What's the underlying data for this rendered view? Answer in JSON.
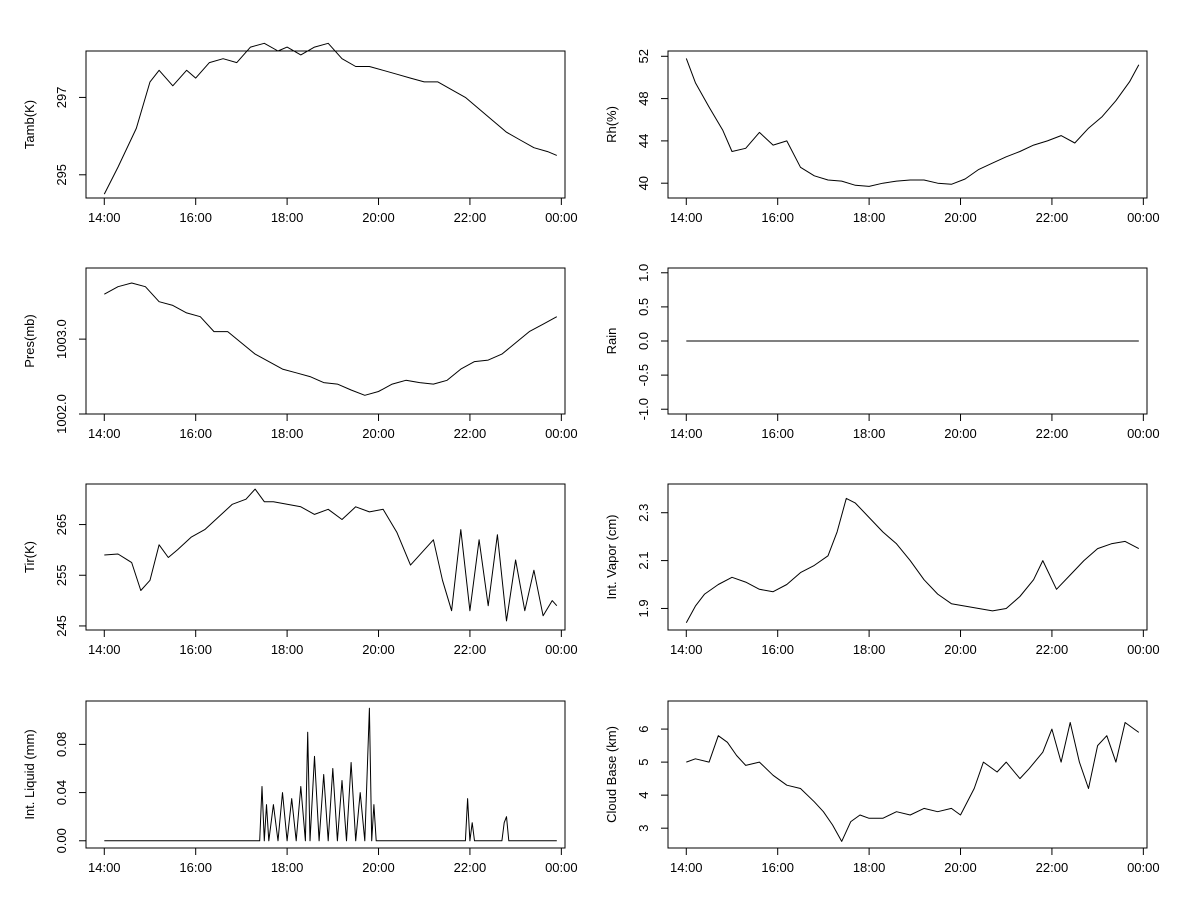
{
  "chart_data": [
    {
      "type": "line",
      "ylabel": "Tamb(K)",
      "xticks": [
        "14:00",
        "16:00",
        "18:00",
        "20:00",
        "22:00",
        "00:00"
      ],
      "xlim": [
        14.0,
        24.0
      ],
      "yticks": [
        295,
        297
      ],
      "ylim": [
        294.4,
        298.2
      ],
      "series": [
        {
          "x": [
            14.0,
            14.3,
            14.7,
            15.0,
            15.2,
            15.5,
            15.8,
            16.0,
            16.3,
            16.6,
            16.9,
            17.2,
            17.5,
            17.8,
            18.0,
            18.3,
            18.6,
            18.9,
            19.2,
            19.5,
            19.8,
            20.1,
            20.4,
            20.7,
            21.0,
            21.3,
            21.6,
            21.9,
            22.2,
            22.5,
            22.8,
            23.1,
            23.4,
            23.7,
            23.9
          ],
          "y": [
            294.5,
            295.2,
            296.2,
            297.4,
            297.7,
            297.3,
            297.7,
            297.5,
            297.9,
            298.0,
            297.9,
            298.3,
            298.4,
            298.2,
            298.3,
            298.1,
            298.3,
            298.4,
            298.0,
            297.8,
            297.8,
            297.7,
            297.6,
            297.5,
            297.4,
            297.4,
            297.2,
            297.0,
            296.7,
            296.4,
            296.1,
            295.9,
            295.7,
            295.6,
            295.5
          ]
        }
      ]
    },
    {
      "type": "line",
      "ylabel": "Rh(%)",
      "xticks": [
        "14:00",
        "16:00",
        "18:00",
        "20:00",
        "22:00",
        "00:00"
      ],
      "xlim": [
        14.0,
        24.0
      ],
      "yticks": [
        40,
        44,
        48,
        52
      ],
      "ylim": [
        38.6,
        52.5
      ],
      "series": [
        {
          "x": [
            14.0,
            14.2,
            14.5,
            14.8,
            15.0,
            15.3,
            15.6,
            15.9,
            16.2,
            16.5,
            16.8,
            17.1,
            17.4,
            17.7,
            18.0,
            18.3,
            18.6,
            18.9,
            19.2,
            19.5,
            19.8,
            20.1,
            20.4,
            20.7,
            21.0,
            21.3,
            21.6,
            21.9,
            22.2,
            22.5,
            22.8,
            23.1,
            23.4,
            23.7,
            23.9
          ],
          "y": [
            51.8,
            49.5,
            47.2,
            45.0,
            43.0,
            43.3,
            44.8,
            43.6,
            44.0,
            41.5,
            40.7,
            40.3,
            40.2,
            39.8,
            39.7,
            40.0,
            40.2,
            40.3,
            40.3,
            40.0,
            39.9,
            40.4,
            41.3,
            41.9,
            42.5,
            43.0,
            43.6,
            44.0,
            44.5,
            43.8,
            45.2,
            46.3,
            47.8,
            49.6,
            51.2
          ]
        }
      ]
    },
    {
      "type": "line",
      "ylabel": "Pres(mb)",
      "xticks": [
        "14:00",
        "16:00",
        "18:00",
        "20:00",
        "22:00",
        "00:00"
      ],
      "xlim": [
        14.0,
        24.0
      ],
      "yticks": [
        "1002.0",
        "1003.0"
      ],
      "ylim": [
        1002.0,
        1003.95
      ],
      "series": [
        {
          "x": [
            14.0,
            14.3,
            14.6,
            14.9,
            15.2,
            15.5,
            15.8,
            16.1,
            16.4,
            16.7,
            17.0,
            17.3,
            17.6,
            17.9,
            18.2,
            18.5,
            18.8,
            19.1,
            19.4,
            19.7,
            20.0,
            20.3,
            20.6,
            20.9,
            21.2,
            21.5,
            21.8,
            22.1,
            22.4,
            22.7,
            23.0,
            23.3,
            23.6,
            23.9
          ],
          "y": [
            1003.6,
            1003.7,
            1003.75,
            1003.7,
            1003.5,
            1003.45,
            1003.35,
            1003.3,
            1003.1,
            1003.1,
            1002.95,
            1002.8,
            1002.7,
            1002.6,
            1002.55,
            1002.5,
            1002.42,
            1002.4,
            1002.32,
            1002.25,
            1002.3,
            1002.4,
            1002.45,
            1002.42,
            1002.4,
            1002.45,
            1002.6,
            1002.7,
            1002.72,
            1002.8,
            1002.95,
            1003.1,
            1003.2,
            1003.3
          ]
        }
      ]
    },
    {
      "type": "line",
      "ylabel": "Rain",
      "xticks": [
        "14:00",
        "16:00",
        "18:00",
        "20:00",
        "22:00",
        "00:00"
      ],
      "xlim": [
        14.0,
        24.0
      ],
      "yticks": [
        "-1.0",
        "-0.5",
        "0.0",
        "0.5",
        "1.0"
      ],
      "ylim": [
        -1.07,
        1.07
      ],
      "series": [
        {
          "x": [
            14.0,
            23.9
          ],
          "y": [
            0.0,
            0.0
          ]
        }
      ]
    },
    {
      "type": "line",
      "ylabel": "Tir(K)",
      "xticks": [
        "14:00",
        "16:00",
        "18:00",
        "20:00",
        "22:00",
        "00:00"
      ],
      "xlim": [
        14.0,
        24.0
      ],
      "yticks": [
        245,
        255,
        265
      ],
      "ylim": [
        244.2,
        273.0
      ],
      "series": [
        {
          "x": [
            14.0,
            14.3,
            14.6,
            14.8,
            15.0,
            15.2,
            15.4,
            15.6,
            15.9,
            16.2,
            16.5,
            16.8,
            17.1,
            17.3,
            17.5,
            17.7,
            18.0,
            18.3,
            18.6,
            18.9,
            19.2,
            19.5,
            19.8,
            20.1,
            20.4,
            20.7,
            21.0,
            21.2,
            21.4,
            21.6,
            21.8,
            22.0,
            22.2,
            22.4,
            22.6,
            22.8,
            23.0,
            23.2,
            23.4,
            23.6,
            23.8,
            23.9
          ],
          "y": [
            259.0,
            259.2,
            257.5,
            252.0,
            254.0,
            261.0,
            258.5,
            260.0,
            262.5,
            264.0,
            266.5,
            269.0,
            270.0,
            272.0,
            269.5,
            269.5,
            269.0,
            268.5,
            267.0,
            268.0,
            266.0,
            268.5,
            267.5,
            268.0,
            263.5,
            257.0,
            260.0,
            262.0,
            254.0,
            248.0,
            264.0,
            248.0,
            262.0,
            249.0,
            263.0,
            246.0,
            258.0,
            248.0,
            256.0,
            247.0,
            250.0,
            249.0
          ]
        }
      ]
    },
    {
      "type": "line",
      "ylabel": "Int. Vapor (cm)",
      "xticks": [
        "14:00",
        "16:00",
        "18:00",
        "20:00",
        "22:00",
        "00:00"
      ],
      "xlim": [
        14.0,
        24.0
      ],
      "yticks": [
        "1.9",
        "2.1",
        "2.3"
      ],
      "ylim": [
        1.81,
        2.42
      ],
      "series": [
        {
          "x": [
            14.0,
            14.2,
            14.4,
            14.7,
            15.0,
            15.3,
            15.6,
            15.9,
            16.2,
            16.5,
            16.8,
            17.1,
            17.3,
            17.5,
            17.7,
            18.0,
            18.3,
            18.6,
            18.9,
            19.2,
            19.5,
            19.8,
            20.1,
            20.4,
            20.7,
            21.0,
            21.3,
            21.6,
            21.8,
            22.1,
            22.4,
            22.7,
            23.0,
            23.3,
            23.6,
            23.9
          ],
          "y": [
            1.84,
            1.91,
            1.96,
            2.0,
            2.03,
            2.01,
            1.98,
            1.97,
            2.0,
            2.05,
            2.08,
            2.12,
            2.22,
            2.36,
            2.34,
            2.28,
            2.22,
            2.17,
            2.1,
            2.02,
            1.96,
            1.92,
            1.91,
            1.9,
            1.89,
            1.9,
            1.95,
            2.02,
            2.1,
            1.98,
            2.04,
            2.1,
            2.15,
            2.17,
            2.18,
            2.15
          ]
        }
      ]
    },
    {
      "type": "line",
      "ylabel": "Int. Liquid (mm)",
      "xticks": [
        "14:00",
        "16:00",
        "18:00",
        "20:00",
        "22:00",
        "00:00"
      ],
      "xlim": [
        14.0,
        24.0
      ],
      "yticks": [
        "0.00",
        "0.04",
        "0.08"
      ],
      "ylim": [
        -0.006,
        0.116
      ],
      "series": [
        {
          "x": [
            14.0,
            17.4,
            17.45,
            17.5,
            17.55,
            17.6,
            17.7,
            17.8,
            17.9,
            18.0,
            18.1,
            18.2,
            18.3,
            18.4,
            18.45,
            18.5,
            18.6,
            18.7,
            18.8,
            18.9,
            19.0,
            19.1,
            19.2,
            19.3,
            19.4,
            19.5,
            19.6,
            19.7,
            19.8,
            19.85,
            19.9,
            19.95,
            20.0,
            21.9,
            21.95,
            22.0,
            22.05,
            22.1,
            22.7,
            22.75,
            22.8,
            22.85,
            22.9,
            23.9
          ],
          "y": [
            0.0,
            0.0,
            0.045,
            0.0,
            0.03,
            0.0,
            0.03,
            0.0,
            0.04,
            0.0,
            0.035,
            0.0,
            0.045,
            0.0,
            0.09,
            0.0,
            0.07,
            0.0,
            0.055,
            0.0,
            0.06,
            0.0,
            0.05,
            0.0,
            0.065,
            0.0,
            0.04,
            0.0,
            0.11,
            0.0,
            0.03,
            0.0,
            0.0,
            0.0,
            0.035,
            0.0,
            0.015,
            0.0,
            0.0,
            0.015,
            0.02,
            0.0,
            0.0,
            0.0
          ]
        }
      ]
    },
    {
      "type": "line",
      "ylabel": "Cloud Base (km)",
      "xticks": [
        "14:00",
        "16:00",
        "18:00",
        "20:00",
        "22:00",
        "00:00"
      ],
      "xlim": [
        14.0,
        24.0
      ],
      "yticks": [
        3,
        4,
        5,
        6
      ],
      "ylim": [
        2.4,
        6.85
      ],
      "series": [
        {
          "x": [
            14.0,
            14.2,
            14.5,
            14.7,
            14.9,
            15.1,
            15.3,
            15.6,
            15.9,
            16.2,
            16.5,
            16.8,
            17.0,
            17.2,
            17.4,
            17.6,
            17.8,
            18.0,
            18.3,
            18.6,
            18.9,
            19.2,
            19.5,
            19.8,
            20.0,
            20.3,
            20.5,
            20.8,
            21.0,
            21.3,
            21.5,
            21.8,
            22.0,
            22.2,
            22.4,
            22.6,
            22.8,
            23.0,
            23.2,
            23.4,
            23.6,
            23.8,
            23.9
          ],
          "y": [
            5.0,
            5.1,
            5.0,
            5.8,
            5.6,
            5.2,
            4.9,
            5.0,
            4.6,
            4.3,
            4.2,
            3.8,
            3.5,
            3.1,
            2.6,
            3.2,
            3.4,
            3.3,
            3.3,
            3.5,
            3.4,
            3.6,
            3.5,
            3.6,
            3.4,
            4.2,
            5.0,
            4.7,
            5.0,
            4.5,
            4.8,
            5.3,
            6.0,
            5.0,
            6.2,
            5.0,
            4.2,
            5.5,
            5.8,
            5.0,
            6.2,
            6.0,
            5.9
          ]
        }
      ]
    }
  ]
}
